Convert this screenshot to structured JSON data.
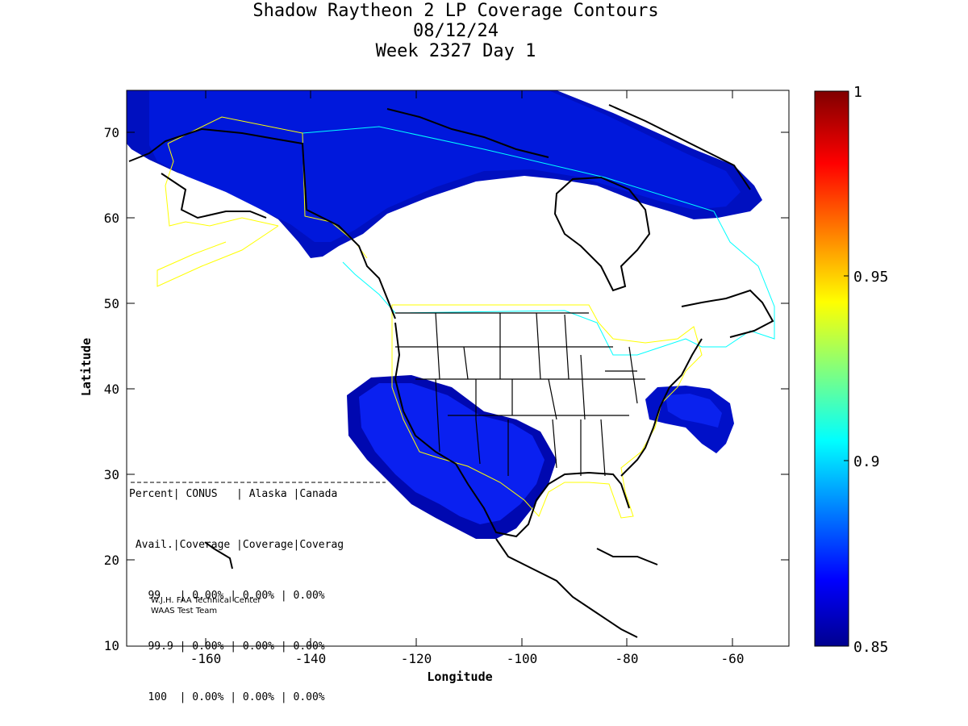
{
  "title": {
    "line1": "Shadow Raytheon 2 LP Coverage Contours",
    "line2": "08/12/24",
    "line3": "Week 2327 Day 1"
  },
  "axes": {
    "xlabel": "Longitude",
    "ylabel": "Latitude",
    "x_ticks": [
      "-160",
      "-140",
      "-120",
      "-100",
      "-80",
      "-60"
    ],
    "y_ticks": [
      "10",
      "20",
      "30",
      "40",
      "50",
      "60",
      "70"
    ],
    "xlim": [
      -175,
      -50
    ],
    "ylim": [
      10,
      75
    ]
  },
  "colorbar": {
    "min_label": "0.85",
    "max_label": "1",
    "ticks": [
      "0.85",
      "0.9",
      "0.95",
      "1"
    ],
    "colormap": "jet"
  },
  "stats_table": {
    "header1": "Percent| CONUS   | Alaska |Canada",
    "header2": " Avail.|Coverage |Coverage|Coverag",
    "rows": [
      "   99   | 0.00% | 0.00% | 0.00%",
      "   99.9 | 0.00% | 0.00% | 0.00%",
      "   100  | 0.00% | 0.00% | 0.00%"
    ]
  },
  "credit": {
    "line1": "W.J.H. FAA Technical Center",
    "line2": "WAAS Test Team"
  },
  "colors": {
    "coverage_dark": "#0000a8",
    "coverage_mid": "#0010d0",
    "coverage_light": "#0a28f0",
    "conus_boundary": "#ffff00",
    "canada_boundary": "#00ffff"
  }
}
